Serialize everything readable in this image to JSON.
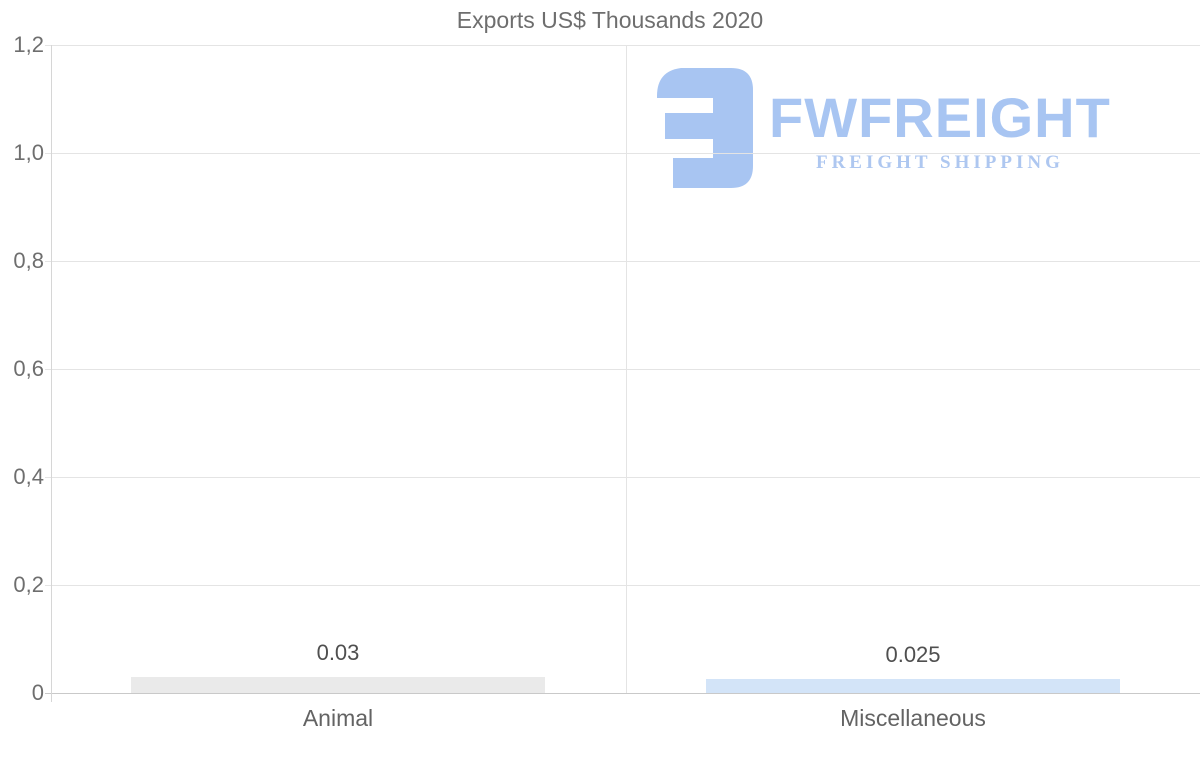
{
  "chart_data": {
    "type": "bar",
    "title": "Exports US$ Thousands 2020",
    "categories": [
      "Animal",
      "Miscellaneous"
    ],
    "values": [
      0.03,
      0.025
    ],
    "data_labels": [
      "0.03",
      "0.025"
    ],
    "bar_colors": [
      "#eaeaea",
      "#d3e4f8"
    ],
    "xlabel": "",
    "ylabel": "",
    "ylim": [
      0,
      1.2
    ],
    "y_tick_step": 0.2,
    "y_tick_labels": [
      "0",
      "0,2",
      "0,4",
      "0,6",
      "0,8",
      "1,0",
      "1,2"
    ],
    "grid": true,
    "legend": false
  },
  "watermark": {
    "brand": "FWFREIGHT",
    "tagline": "FREIGHT SHIPPING",
    "brand_color": "#a8c5f2",
    "tagline_color": "#aec7f0",
    "mark_color": "#a8c5f2"
  },
  "colors": {
    "background": "#ffffff",
    "title_text": "#6e6e6e",
    "tick_text": "#6e6e6e",
    "value_text": "#4f4f4f",
    "category_text": "#636363",
    "gridline": "#e4e4e4",
    "baseline": "#c9c9c9",
    "axis_line": "#d6d6d6"
  }
}
